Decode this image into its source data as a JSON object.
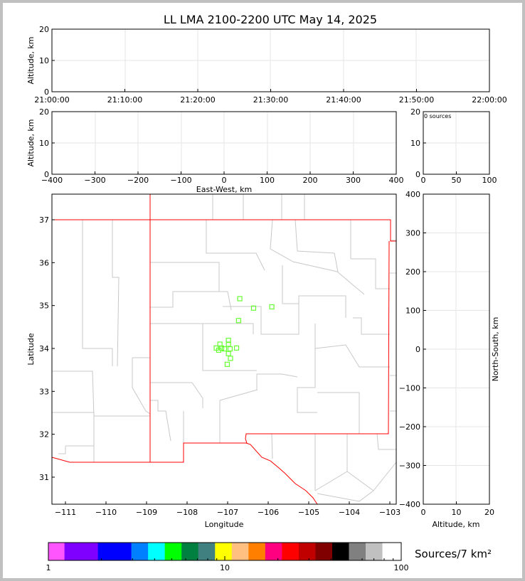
{
  "title": "LL LMA 2100-2200 UTC May 14, 2025",
  "colors": {
    "points": "#66ff33",
    "state_border": "#ff0000",
    "county_border": "#c8c8c8",
    "grid": "#e6e6e6"
  },
  "chart_data": [
    {
      "type": "scatter",
      "panel": "time-height",
      "ylabel": "Altitude, km",
      "ylim": [
        0,
        20
      ],
      "yticks": [
        "0",
        "10",
        "20"
      ],
      "xticks": [
        "21:00:00",
        "21:10:00",
        "21:20:00",
        "21:30:00",
        "21:40:00",
        "21:50:00",
        "22:00:00"
      ],
      "points": [],
      "grid": true
    },
    {
      "type": "scatter",
      "panel": "east-west-altitude",
      "xlabel": "East-West, km",
      "ylabel": "Altitude, km",
      "xlim": [
        -400,
        400
      ],
      "ylim": [
        0,
        20
      ],
      "xticks": [
        "−400",
        "−300",
        "−200",
        "−100",
        "0",
        "100",
        "200",
        "300",
        "400"
      ],
      "yticks": [
        "0",
        "10",
        "20"
      ],
      "points": [],
      "grid": true
    },
    {
      "type": "bar",
      "panel": "altitude-histogram",
      "annotation": "0 sources",
      "xlim": [
        0,
        100
      ],
      "ylim": [
        0,
        20
      ],
      "xticks": [
        "0",
        "50",
        "100"
      ],
      "yticks": [
        "0",
        "10",
        "20"
      ],
      "values": [],
      "grid": true
    },
    {
      "type": "scatter",
      "panel": "plan-view",
      "xlabel": "Longitude",
      "ylabel": "Latitude",
      "xlim": [
        -111.33,
        -102.85
      ],
      "ylim": [
        30.37,
        37.6
      ],
      "xticks": [
        "−111",
        "−110",
        "−109",
        "−108",
        "−107",
        "−106",
        "−105",
        "−104",
        "−103"
      ],
      "yticks": [
        "31",
        "32",
        "33",
        "34",
        "35",
        "36",
        "37"
      ],
      "points": [
        {
          "lon": -106.7,
          "lat": 35.16
        },
        {
          "lon": -106.36,
          "lat": 34.94
        },
        {
          "lon": -105.91,
          "lat": 34.97
        },
        {
          "lon": -106.73,
          "lat": 34.65
        },
        {
          "lon": -106.98,
          "lat": 34.19
        },
        {
          "lon": -107.19,
          "lat": 34.1
        },
        {
          "lon": -106.98,
          "lat": 34.1
        },
        {
          "lon": -107.28,
          "lat": 34.01
        },
        {
          "lon": -107.15,
          "lat": 34.01
        },
        {
          "lon": -107.08,
          "lat": 33.99
        },
        {
          "lon": -106.94,
          "lat": 33.99
        },
        {
          "lon": -106.78,
          "lat": 34.01
        },
        {
          "lon": -107.22,
          "lat": 33.96
        },
        {
          "lon": -106.98,
          "lat": 33.88
        },
        {
          "lon": -106.93,
          "lat": 33.77
        },
        {
          "lon": -107.01,
          "lat": 33.63
        }
      ],
      "grid": false
    },
    {
      "type": "scatter",
      "panel": "north-south-altitude",
      "xlabel": "Altitude, km",
      "ylabel": "North-South, km",
      "xlim": [
        0,
        20
      ],
      "ylim": [
        -400,
        400
      ],
      "xticks": [
        "0",
        "10",
        "20"
      ],
      "yticks": [
        "−400",
        "−300",
        "−200",
        "−100",
        "0",
        "100",
        "200",
        "300",
        "400"
      ],
      "points": [],
      "grid": true
    }
  ],
  "colorbar": {
    "label": "Sources/7 km²",
    "scale": "log",
    "range": [
      1,
      100
    ],
    "ticks": [
      "1",
      "10",
      "100"
    ],
    "colors": [
      "#ff55ff",
      "#8000ff",
      "#0000ff",
      "#0080ff",
      "#00ffff",
      "#00ff00",
      "#008040",
      "#408080",
      "#ffff00",
      "#ffc080",
      "#ff8000",
      "#ff0080",
      "#ff0000",
      "#c00000",
      "#800000",
      "#000000",
      "#808080",
      "#c0c0c0",
      "#ffffff"
    ]
  }
}
